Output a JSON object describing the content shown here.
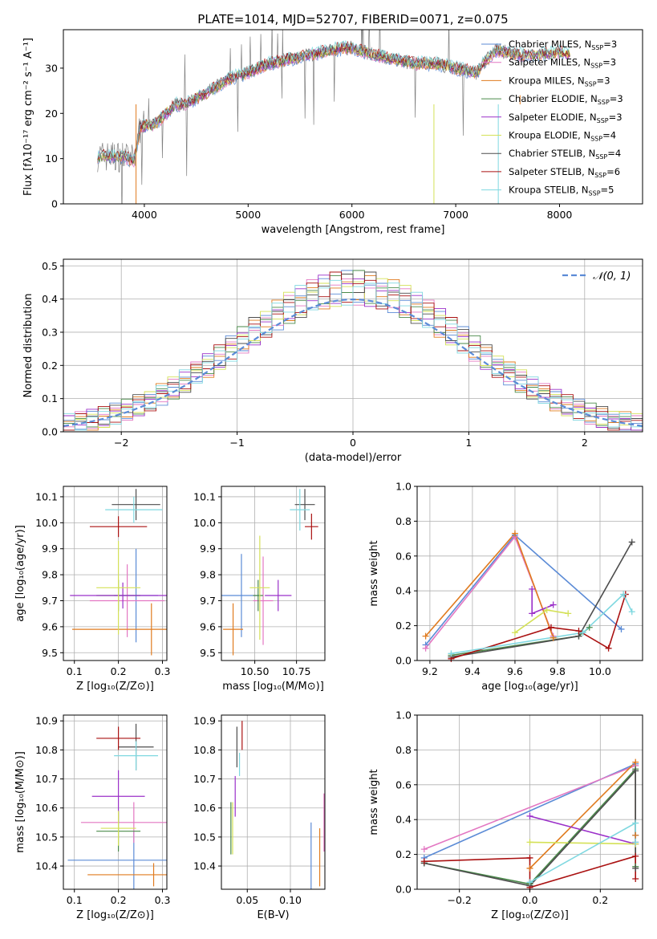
{
  "chart_data": [
    {
      "id": "spectrum",
      "type": "line",
      "title": "PLATE=1014, MJD=52707, FIBERID=0071, z=0.075",
      "xlabel": "wavelength [Angstrom, rest frame]",
      "ylabel": "Flux [fλ10⁻¹⁷ erg cm⁻² s⁻¹ A⁻¹]",
      "xlim": [
        3220,
        8800
      ],
      "ylim": [
        0,
        38.5
      ],
      "xticks": [
        4000,
        5000,
        6000,
        7000,
        8000
      ],
      "yticks": [
        0,
        10,
        20,
        30
      ],
      "grid": false,
      "legend_position": "top-right",
      "spectrum_anchors": [
        [
          3550,
          10.5
        ],
        [
          3800,
          10.5
        ],
        [
          3900,
          9.5
        ],
        [
          3960,
          17
        ],
        [
          4100,
          17.5
        ],
        [
          4300,
          22
        ],
        [
          4400,
          22
        ],
        [
          4600,
          24.5
        ],
        [
          4800,
          27.5
        ],
        [
          5000,
          29
        ],
        [
          5200,
          31
        ],
        [
          5400,
          32
        ],
        [
          5600,
          33
        ],
        [
          5800,
          34
        ],
        [
          6000,
          34.5
        ],
        [
          6200,
          33
        ],
        [
          6400,
          32
        ],
        [
          6600,
          31
        ],
        [
          6800,
          31
        ],
        [
          7000,
          30
        ],
        [
          7200,
          29
        ],
        [
          7300,
          32
        ],
        [
          7400,
          34
        ],
        [
          7600,
          33
        ]
      ],
      "data_end": 7600,
      "model_anchors": [
        [
          3550,
          10.5
        ],
        [
          3800,
          10.5
        ],
        [
          3900,
          9.5
        ],
        [
          3960,
          17
        ],
        [
          4100,
          17.5
        ],
        [
          4300,
          22
        ],
        [
          4400,
          22
        ],
        [
          4600,
          24.5
        ],
        [
          4800,
          27.5
        ],
        [
          5000,
          29
        ],
        [
          5200,
          31
        ],
        [
          5400,
          32
        ],
        [
          5600,
          33
        ],
        [
          5800,
          34
        ],
        [
          6000,
          34.5
        ],
        [
          6200,
          33
        ],
        [
          6400,
          32
        ],
        [
          6600,
          31
        ],
        [
          6800,
          31
        ],
        [
          7000,
          30
        ],
        [
          7200,
          29
        ],
        [
          7300,
          32
        ],
        [
          7400,
          34
        ],
        [
          7600,
          33
        ],
        [
          7800,
          33
        ],
        [
          8000,
          33.5
        ],
        [
          8100,
          33
        ]
      ],
      "dips": [
        [
          3920,
          0
        ],
        [
          6790,
          0
        ],
        [
          7410,
          0
        ],
        [
          7620,
          24
        ]
      ]
    },
    {
      "id": "residuals",
      "type": "step",
      "xlabel": "(data-model)/error",
      "ylabel": "Normed distribution",
      "xlim": [
        -2.5,
        2.5
      ],
      "ylim": [
        0,
        0.52
      ],
      "xticks": [
        -2,
        -1,
        0,
        1,
        2
      ],
      "yticks": [
        0.0,
        0.1,
        0.2,
        0.3,
        0.4,
        0.5
      ],
      "grid": true,
      "legend_position": "top-right",
      "bin_width": 0.1,
      "gaussian_label": "𝒩(0, 1)",
      "gaussian_color": "#5b8bd6",
      "jitter": [
        0.012,
        -0.018,
        0.025,
        -0.006,
        0.031,
        -0.022,
        0.009,
        0.017,
        -0.027,
        0.004
      ]
    },
    {
      "id": "age-Z",
      "type": "errorbar",
      "xlabel": "Z [log₁₀(Z/Z⊙)]",
      "ylabel": "age  [log₁₀(age/yr)]",
      "xlim": [
        0.075,
        0.31
      ],
      "ylim": [
        9.47,
        10.14
      ],
      "xticks": [
        0.1,
        0.2,
        0.3
      ],
      "xticklabels": [
        "0.1",
        "0.2",
        "0.3"
      ],
      "yticks": [
        9.5,
        9.6,
        9.7,
        9.8,
        9.9,
        10.0,
        10.1
      ],
      "yticklabels": [
        "9.5",
        "9.6",
        "9.7",
        "9.8",
        "9.9",
        "10.0",
        "10.1"
      ],
      "grid": true,
      "points": [
        {
          "s": 0,
          "x": 0.24,
          "xerr": 0.05,
          "y": 9.72,
          "yerr": 0.18
        },
        {
          "s": 1,
          "x": 0.22,
          "xerr": 0.085,
          "y": 9.7,
          "yerr": 0.14
        },
        {
          "s": 2,
          "x": 0.275,
          "xerr": 0.18,
          "y": 9.59,
          "yerr": 0.1
        },
        {
          "s": 3,
          "x": 0.2,
          "xerr": 0.05,
          "y": 9.72,
          "yerr": 0.06
        },
        {
          "s": 4,
          "x": 0.21,
          "xerr": 0.12,
          "y": 9.72,
          "yerr": 0.05
        },
        {
          "s": 5,
          "x": 0.2,
          "xerr": 0.05,
          "y": 9.75,
          "yerr": 0.18
        },
        {
          "s": 6,
          "x": 0.24,
          "xerr": 0.055,
          "y": 10.07,
          "yerr": 0.06
        },
        {
          "s": 7,
          "x": 0.2,
          "xerr": 0.065,
          "y": 9.985,
          "yerr": 0.04
        },
        {
          "s": 8,
          "x": 0.235,
          "xerr": 0.065,
          "y": 10.05,
          "yerr": 0.05
        }
      ]
    },
    {
      "id": "age-mass",
      "type": "errorbar",
      "xlabel": "mass [log₁₀(M/M⊙)]",
      "ylabel": "",
      "xlim": [
        10.3,
        10.92
      ],
      "ylim": [
        9.47,
        10.14
      ],
      "xticks": [
        10.5,
        10.75
      ],
      "xticklabels": [
        "10.50",
        "10.75"
      ],
      "yticks": [
        9.5,
        9.6,
        9.7,
        9.8,
        9.9,
        10.0,
        10.1
      ],
      "yticklabels": [
        "9.5",
        "9.6",
        "9.7",
        "9.8",
        "9.9",
        "10.0",
        "10.1"
      ],
      "grid": true,
      "points": [
        {
          "s": 0,
          "x": 10.42,
          "xerr": 0.12,
          "y": 9.72,
          "yerr": 0.16
        },
        {
          "s": 1,
          "x": 10.55,
          "xerr": 0.06,
          "y": 9.7,
          "yerr": 0.17
        },
        {
          "s": 2,
          "x": 10.37,
          "xerr": 0.06,
          "y": 9.59,
          "yerr": 0.1
        },
        {
          "s": 3,
          "x": 10.52,
          "xerr": 0.03,
          "y": 9.72,
          "yerr": 0.06
        },
        {
          "s": 4,
          "x": 10.64,
          "xerr": 0.08,
          "y": 9.72,
          "yerr": 0.06
        },
        {
          "s": 5,
          "x": 10.53,
          "xerr": 0.06,
          "y": 9.75,
          "yerr": 0.2
        },
        {
          "s": 6,
          "x": 10.8,
          "xerr": 0.06,
          "y": 10.07,
          "yerr": 0.06
        },
        {
          "s": 7,
          "x": 10.84,
          "xerr": 0.04,
          "y": 9.985,
          "yerr": 0.05
        },
        {
          "s": 8,
          "x": 10.77,
          "xerr": 0.06,
          "y": 10.05,
          "yerr": 0.08
        }
      ]
    },
    {
      "id": "weight-age",
      "type": "line",
      "xlabel": "age  [log₁₀(age/yr)]",
      "ylabel": "mass weight",
      "xlim": [
        9.14,
        10.2
      ],
      "ylim": [
        0,
        1
      ],
      "xticks": [
        9.2,
        9.4,
        9.6,
        9.8,
        10.0
      ],
      "xticklabels": [
        "9.2",
        "9.4",
        "9.6",
        "9.8",
        "10.0"
      ],
      "yticks": [
        0.0,
        0.2,
        0.4,
        0.6,
        0.8,
        1.0
      ],
      "yticklabels": [
        "0.0",
        "0.2",
        "0.4",
        "0.6",
        "0.8",
        "1.0"
      ],
      "grid": true,
      "lines": [
        {
          "s": 0,
          "pts": [
            [
              9.18,
              0.09
            ],
            [
              9.6,
              0.72
            ],
            [
              10.1,
              0.18
            ]
          ]
        },
        {
          "s": 1,
          "pts": [
            [
              9.18,
              0.07
            ],
            [
              9.6,
              0.71
            ],
            [
              9.78,
              0.14
            ]
          ]
        },
        {
          "s": 2,
          "pts": [
            [
              9.18,
              0.14
            ],
            [
              9.6,
              0.73
            ],
            [
              9.78,
              0.13
            ]
          ]
        },
        {
          "s": 3,
          "pts": [
            [
              9.3,
              0.03
            ],
            [
              9.9,
              0.14
            ],
            [
              9.95,
              0.19
            ]
          ]
        },
        {
          "s": 4,
          "pts": [
            [
              9.68,
              0.41
            ],
            [
              9.68,
              0.27
            ],
            [
              9.78,
              0.32
            ]
          ]
        },
        {
          "s": 5,
          "pts": [
            [
              9.6,
              0.16
            ],
            [
              9.75,
              0.29
            ],
            [
              9.85,
              0.27
            ]
          ]
        },
        {
          "s": 6,
          "pts": [
            [
              9.3,
              0.02
            ],
            [
              9.9,
              0.14
            ],
            [
              10.15,
              0.68
            ]
          ]
        },
        {
          "s": 7,
          "pts": [
            [
              9.3,
              0.01
            ],
            [
              9.77,
              0.19
            ],
            [
              9.9,
              0.17
            ],
            [
              10.04,
              0.07
            ],
            [
              10.12,
              0.38
            ]
          ]
        },
        {
          "s": 8,
          "pts": [
            [
              9.3,
              0.04
            ],
            [
              9.92,
              0.16
            ],
            [
              10.11,
              0.38
            ],
            [
              10.15,
              0.28
            ]
          ]
        }
      ]
    },
    {
      "id": "mass-Z",
      "type": "errorbar",
      "xlabel": "Z [log₁₀(Z/Z⊙)]",
      "ylabel": "mass [log₁₀(M/M⊙)]",
      "xlim": [
        0.075,
        0.31
      ],
      "ylim": [
        10.32,
        10.92
      ],
      "xticks": [
        0.1,
        0.2,
        0.3
      ],
      "xticklabels": [
        "0.1",
        "0.2",
        "0.3"
      ],
      "yticks": [
        10.4,
        10.5,
        10.6,
        10.7,
        10.8,
        10.9
      ],
      "yticklabels": [
        "10.4",
        "10.5",
        "10.6",
        "10.7",
        "10.8",
        "10.9"
      ],
      "grid": true,
      "points": [
        {
          "s": 0,
          "x": 0.235,
          "xerr": 0.15,
          "y": 10.42,
          "yerr": 0.1
        },
        {
          "s": 1,
          "x": 0.235,
          "xerr": 0.12,
          "y": 10.55,
          "yerr": 0.07
        },
        {
          "s": 2,
          "x": 0.28,
          "xerr": 0.15,
          "y": 10.37,
          "yerr": 0.04
        },
        {
          "s": 3,
          "x": 0.2,
          "xerr": 0.05,
          "y": 10.52,
          "yerr": 0.07
        },
        {
          "s": 4,
          "x": 0.2,
          "xerr": 0.06,
          "y": 10.64,
          "yerr": 0.09
        },
        {
          "s": 5,
          "x": 0.2,
          "xerr": 0.04,
          "y": 10.53,
          "yerr": 0.06
        },
        {
          "s": 6,
          "x": 0.24,
          "xerr": 0.04,
          "y": 10.81,
          "yerr": 0.08
        },
        {
          "s": 7,
          "x": 0.2,
          "xerr": 0.05,
          "y": 10.84,
          "yerr": 0.04
        },
        {
          "s": 8,
          "x": 0.24,
          "xerr": 0.05,
          "y": 10.78,
          "yerr": 0.05
        }
      ]
    },
    {
      "id": "mass-ebv",
      "type": "errorbar",
      "xlabel": "E(B-V)",
      "ylabel": "",
      "xlim": [
        0.02,
        0.14
      ],
      "ylim": [
        10.32,
        10.92
      ],
      "xticks": [
        0.05,
        0.1
      ],
      "xticklabels": [
        "0.05",
        "0.10"
      ],
      "yticks": [
        10.4,
        10.5,
        10.6,
        10.7,
        10.8,
        10.9
      ],
      "yticklabels": [
        "10.4",
        "10.5",
        "10.6",
        "10.7",
        "10.8",
        "10.9"
      ],
      "grid": true,
      "points": [
        {
          "s": 0,
          "x": 0.124,
          "xerr": 0,
          "y": 10.42,
          "yerr": 0.13
        },
        {
          "s": 1,
          "x": 0.139,
          "xerr": 0,
          "y": 10.55,
          "yerr": 0.1
        },
        {
          "s": 2,
          "x": 0.134,
          "xerr": 0,
          "y": 10.43,
          "yerr": 0.1
        },
        {
          "s": 3,
          "x": 0.031,
          "xerr": 0,
          "y": 10.53,
          "yerr": 0.09
        },
        {
          "s": 4,
          "x": 0.036,
          "xerr": 0,
          "y": 10.64,
          "yerr": 0.07
        },
        {
          "s": 5,
          "x": 0.033,
          "xerr": 0,
          "y": 10.53,
          "yerr": 0.09
        },
        {
          "s": 6,
          "x": 0.038,
          "xerr": 0,
          "y": 10.81,
          "yerr": 0.07
        },
        {
          "s": 7,
          "x": 0.044,
          "xerr": 0,
          "y": 10.85,
          "yerr": 0.05
        },
        {
          "s": 8,
          "x": 0.041,
          "xerr": 0,
          "y": 10.75,
          "yerr": 0.04
        }
      ]
    },
    {
      "id": "weight-Z",
      "type": "line",
      "xlabel": "Z [log₁₀(Z/Z⊙)]",
      "ylabel": "mass weight",
      "xlim": [
        -0.32,
        0.32
      ],
      "ylim": [
        0,
        1
      ],
      "xticks": [
        -0.2,
        0.0,
        0.2
      ],
      "xticklabels": [
        "−0.2",
        "0.0",
        "0.2"
      ],
      "yticks": [
        0.0,
        0.2,
        0.4,
        0.6,
        0.8,
        1.0
      ],
      "yticklabels": [
        "0.0",
        "0.2",
        "0.4",
        "0.6",
        "0.8",
        "1.0"
      ],
      "grid": true,
      "lines": [
        {
          "s": 0,
          "pts": [
            [
              -0.3,
              0.18
            ],
            [
              0.3,
              0.72
            ],
            [
              0.3,
              0.31
            ]
          ]
        },
        {
          "s": 1,
          "pts": [
            [
              -0.3,
              0.23
            ],
            [
              0.3,
              0.71
            ],
            [
              0.3,
              0.27
            ]
          ]
        },
        {
          "s": 2,
          "pts": [
            [
              0.0,
              0.12
            ],
            [
              0.3,
              0.73
            ],
            [
              0.3,
              0.31
            ]
          ]
        },
        {
          "s": 3,
          "pts": [
            [
              -0.3,
              0.15
            ],
            [
              0.0,
              0.03
            ],
            [
              0.3,
              0.69
            ],
            [
              0.3,
              0.13
            ]
          ]
        },
        {
          "s": 4,
          "pts": [
            [
              0.0,
              0.42
            ],
            [
              0.3,
              0.26
            ]
          ]
        },
        {
          "s": 5,
          "pts": [
            [
              0.0,
              0.27
            ],
            [
              0.3,
              0.26
            ]
          ]
        },
        {
          "s": 6,
          "pts": [
            [
              -0.3,
              0.15
            ],
            [
              0.0,
              0.02
            ],
            [
              0.3,
              0.68
            ],
            [
              0.3,
              0.12
            ]
          ]
        },
        {
          "s": 7,
          "pts": [
            [
              -0.3,
              0.16
            ],
            [
              0.0,
              0.18
            ],
            [
              0.0,
              0.01
            ],
            [
              0.3,
              0.19
            ],
            [
              0.3,
              0.06
            ]
          ]
        },
        {
          "s": 8,
          "pts": [
            [
              0.0,
              0.04
            ],
            [
              0.3,
              0.38
            ],
            [
              0.3,
              0.27
            ]
          ]
        }
      ]
    }
  ],
  "series": [
    {
      "name": "Chabrier MILES",
      "nssp": "3",
      "color": "#5b8bd6"
    },
    {
      "name": "Salpeter MILES",
      "nssp": "3",
      "color": "#e377c2"
    },
    {
      "name": "Kroupa MILES",
      "nssp": "3",
      "color": "#e07b1f"
    },
    {
      "name": "Chabrier ELODIE",
      "nssp": "3",
      "color": "#4a8a4a"
    },
    {
      "name": "Salpeter ELODIE",
      "nssp": "3",
      "color": "#9b30c9"
    },
    {
      "name": "Kroupa ELODIE",
      "nssp": "4",
      "color": "#d4e157"
    },
    {
      "name": "Chabrier STELIB",
      "nssp": "4",
      "color": "#4d4d4d"
    },
    {
      "name": "Salpeter STELIB",
      "nssp": "6",
      "color": "#aa1111"
    },
    {
      "name": "Kroupa STELIB",
      "nssp": "5",
      "color": "#7fd8e0"
    }
  ],
  "data_color": "#808080"
}
